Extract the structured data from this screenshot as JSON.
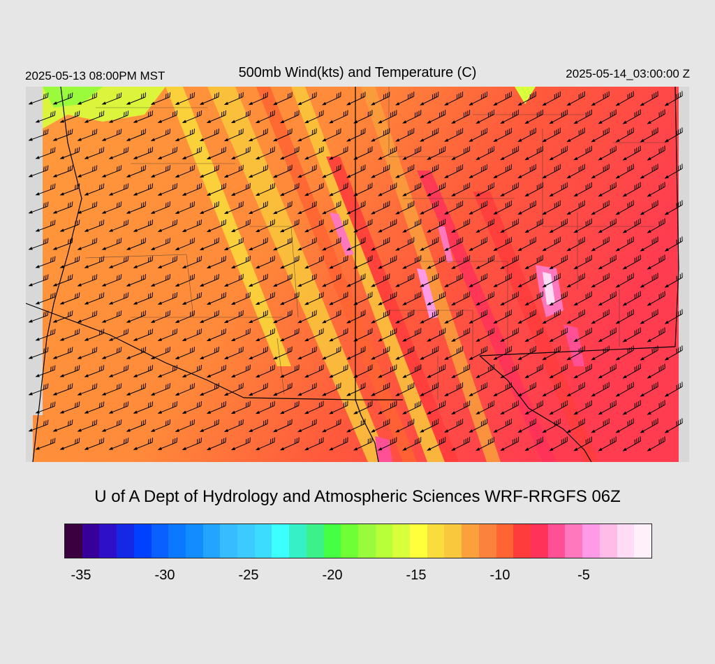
{
  "header": {
    "left_time": "2025-05-13 08:00PM MST",
    "title": "500mb Wind(kts) and Temperature (C)",
    "right_time": "2025-05-14_03:00:00 Z"
  },
  "credit": "U of A Dept of Hydrology and Atmospheric Sciences WRF-RRGFS 06Z",
  "colorbar": {
    "colors": [
      "#3a0040",
      "#38009a",
      "#2e10c8",
      "#1528e6",
      "#0040ff",
      "#0a60ff",
      "#0a78ff",
      "#128cff",
      "#22a4ff",
      "#36bcff",
      "#3ccaff",
      "#3cdcff",
      "#3cffff",
      "#36f0c8",
      "#3cf08a",
      "#44ff44",
      "#6eff36",
      "#9afa3c",
      "#b8ff3a",
      "#d8ff3c",
      "#ffff3c",
      "#fadc3c",
      "#fac83c",
      "#faa03c",
      "#fa823c",
      "#ff6432",
      "#ff3c3c",
      "#ff325a",
      "#ff5096",
      "#ff78be",
      "#ff9ae6",
      "#ffbce6",
      "#ffdcf5",
      "#fff0fa"
    ],
    "tick_labels": [
      "-35",
      "-30",
      "-25",
      "-20",
      "-15",
      "-10",
      "-5"
    ],
    "tick_values": [
      -35,
      -30,
      -25,
      -20,
      -15,
      -10,
      -5
    ],
    "range": [
      -36,
      -1
    ]
  },
  "map": {
    "field_colors": {
      "base": "#ff9a3c",
      "warm": "#ff6a3a",
      "hot": "#ff3c50",
      "cool": "#ffb43c",
      "cold": "#b8ff3a",
      "peak": "#ffb4ee"
    },
    "barb_color": "#000000"
  }
}
